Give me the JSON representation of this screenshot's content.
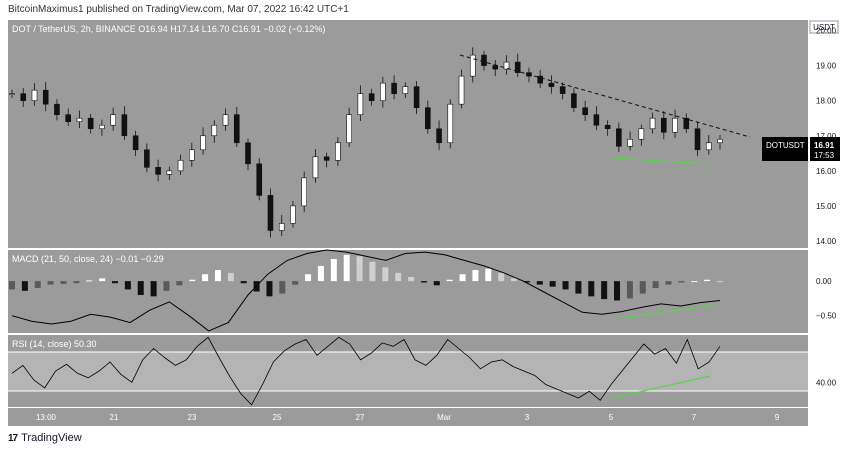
{
  "caption": "BitcoinMaximus1 published on TradingView.com, Mar 07, 2022 16:42 UTC+1",
  "brand": "TradingView",
  "chart_data": [
    {
      "type": "candlestick",
      "symbol_line": {
        "symbol": "DOT / TetherUS, 2h, BINANCE",
        "o_label": "O",
        "o": "16.94",
        "h_label": "H",
        "h": "17.14",
        "l_label": "L",
        "l": "16.70",
        "c_label": "C",
        "c": "16.91",
        "change": "−0.02 (−0.12%)"
      },
      "currency": "USDT",
      "y_ticks": [
        "20.00",
        "19.00",
        "18.00",
        "17.00",
        "16.00",
        "15.00",
        "14.00"
      ],
      "ylim": [
        13.8,
        20.3
      ],
      "price_tag": {
        "symbol": "DOTUSDT",
        "price": "16.91",
        "countdown": "17:53"
      },
      "close_path": [
        18.2,
        18.0,
        18.3,
        17.9,
        17.6,
        17.4,
        17.5,
        17.2,
        17.3,
        17.6,
        17.0,
        16.6,
        16.1,
        15.9,
        16.0,
        16.3,
        16.6,
        17.0,
        17.3,
        17.6,
        16.8,
        16.2,
        15.3,
        14.3,
        14.5,
        15.0,
        15.8,
        16.4,
        16.3,
        16.8,
        17.6,
        18.2,
        18.0,
        18.5,
        18.2,
        18.4,
        17.8,
        17.2,
        16.8,
        17.9,
        18.7,
        19.3,
        19.0,
        18.9,
        19.1,
        18.8,
        18.7,
        18.5,
        18.4,
        18.2,
        17.8,
        17.6,
        17.3,
        17.2,
        16.7,
        16.9,
        17.2,
        17.5,
        17.1,
        17.5,
        17.2,
        16.6,
        16.8,
        16.9
      ],
      "annotations": [
        "descending-resistance-line",
        "green-support-line"
      ]
    },
    {
      "type": "bar",
      "title": "MACD (21, 50, close, 24)",
      "values_text": "−0.01  −0.29",
      "y_ticks": [
        "0.00",
        "−0.50"
      ],
      "ylim": [
        -0.75,
        0.45
      ],
      "histogram": [
        -0.12,
        -0.14,
        -0.1,
        -0.05,
        -0.04,
        -0.03,
        0.01,
        0.04,
        -0.03,
        -0.12,
        -0.2,
        -0.22,
        -0.14,
        -0.06,
        0.02,
        0.1,
        0.16,
        0.12,
        -0.03,
        -0.15,
        -0.22,
        -0.18,
        -0.05,
        0.1,
        0.22,
        0.32,
        0.38,
        0.36,
        0.28,
        0.2,
        0.12,
        0.06,
        -0.02,
        -0.06,
        0.02,
        0.1,
        0.16,
        0.18,
        0.12,
        0.04,
        -0.02,
        -0.05,
        -0.08,
        -0.12,
        -0.18,
        -0.22,
        -0.26,
        -0.28,
        -0.25,
        -0.18,
        -0.1,
        -0.05,
        -0.02,
        0.0,
        0.02,
        0.0
      ],
      "macd_line": [
        -0.5,
        -0.58,
        -0.62,
        -0.58,
        -0.48,
        -0.52,
        -0.6,
        -0.42,
        -0.3,
        -0.5,
        -0.72,
        -0.6,
        -0.2,
        0.1,
        0.3,
        0.4,
        0.45,
        0.42,
        0.36,
        0.3,
        0.4,
        0.42,
        0.38,
        0.3,
        0.22,
        0.12,
        0.0,
        -0.15,
        -0.3,
        -0.45,
        -0.48,
        -0.44,
        -0.38,
        -0.33,
        -0.36,
        -0.31,
        -0.28
      ],
      "annotations": [
        "green-divergence-line"
      ]
    },
    {
      "type": "line",
      "title": "RSI (14, close)",
      "value": "50.30",
      "y_ticks": [
        "40.00"
      ],
      "ylim": [
        18,
        82
      ],
      "series": [
        48,
        55,
        42,
        35,
        50,
        56,
        48,
        44,
        50,
        58,
        47,
        40,
        60,
        70,
        62,
        55,
        60,
        72,
        80,
        62,
        45,
        30,
        20,
        38,
        58,
        68,
        74,
        78,
        64,
        72,
        80,
        74,
        60,
        66,
        75,
        72,
        78,
        60,
        55,
        64,
        78,
        70,
        62,
        52,
        58,
        60,
        54,
        50,
        46,
        38,
        34,
        30,
        26,
        32,
        24,
        38,
        50,
        62,
        74,
        65,
        70,
        57,
        78,
        52,
        58,
        72
      ],
      "annotations": [
        "green-divergence-line"
      ]
    }
  ],
  "x_ticks": [
    "13:00",
    "21",
    "23",
    "25",
    "27",
    "Mar",
    "3",
    "5",
    "7",
    "9"
  ]
}
